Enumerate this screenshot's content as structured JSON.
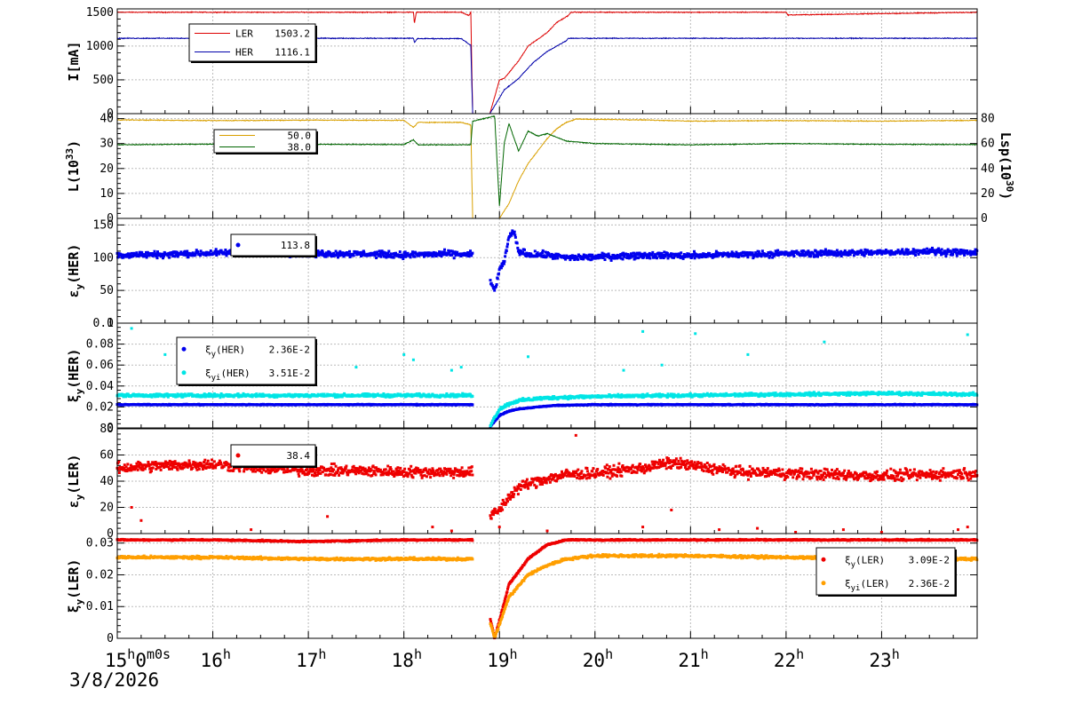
{
  "chart_data": {
    "type": "multi-panel time series",
    "date": "3/8/2026",
    "x_tick_labels": [
      {
        "hour": 15,
        "label": "15",
        "sup": "h",
        "extra": "0",
        "extra_sup": "m",
        "extra2": "0s"
      },
      {
        "hour": 16,
        "label": "16",
        "sup": "h"
      },
      {
        "hour": 17,
        "label": "17",
        "sup": "h"
      },
      {
        "hour": 18,
        "label": "18",
        "sup": "h"
      },
      {
        "hour": 19,
        "label": "19",
        "sup": "h"
      },
      {
        "hour": 20,
        "label": "20",
        "sup": "h"
      },
      {
        "hour": 21,
        "label": "21",
        "sup": "h"
      },
      {
        "hour": 22,
        "label": "22",
        "sup": "h"
      },
      {
        "hour": 23,
        "label": "23",
        "sup": "h"
      }
    ],
    "xlim_hours": [
      15,
      24
    ],
    "grid": true,
    "panels": [
      {
        "id": "current",
        "ylabel": "I[mA]",
        "ylim": [
          0,
          1550
        ],
        "yticks": [
          "0",
          "500",
          "1000",
          "1500"
        ],
        "ytick_values": [
          0,
          500,
          1000,
          1500
        ],
        "legend": [
          {
            "name": "LER",
            "value": "1503.2",
            "color": "#dd0000"
          },
          {
            "name": "HER",
            "value": "1116.1",
            "color": "#0000aa"
          }
        ],
        "series": [
          {
            "name": "LER",
            "color": "#dd0000",
            "style": "line",
            "x": [
              15.0,
              18.1,
              18.11,
              18.13,
              18.6,
              18.68,
              18.7,
              18.72,
              18.9,
              19.0,
              19.05,
              19.2,
              19.3,
              19.5,
              19.6,
              19.72,
              19.75,
              22.0,
              22.02,
              24.0
            ],
            "y": [
              1500,
              1500,
              1330,
              1500,
              1500,
              1450,
              1500,
              0,
              0,
              500,
              520,
              780,
              1000,
              1200,
              1350,
              1450,
              1500,
              1500,
              1460,
              1500
            ]
          },
          {
            "name": "HER",
            "color": "#0000aa",
            "style": "line",
            "x": [
              15.0,
              18.1,
              18.11,
              18.14,
              18.6,
              18.7,
              18.72,
              18.9,
              19.05,
              19.2,
              19.35,
              19.5,
              19.6,
              19.7,
              19.72,
              24.0
            ],
            "y": [
              1115,
              1115,
              1050,
              1110,
              1110,
              1010,
              0,
              0,
              350,
              520,
              750,
              920,
              1000,
              1080,
              1115,
              1115
            ]
          }
        ]
      },
      {
        "id": "luminosity",
        "ylabel": "L(10",
        "ylabel_sup": "33",
        "ylabel_end": ")",
        "ylim": [
          0,
          42
        ],
        "yticks": [
          "0",
          "10",
          "20",
          "30",
          "40"
        ],
        "ytick_values": [
          0,
          10,
          20,
          30,
          40
        ],
        "ylabel_right": "Lsp(10",
        "ylabel_right_sup": "30",
        "ylabel_right_end": ")",
        "ylim_right": [
          0,
          84
        ],
        "yticks_right": [
          "0",
          "20",
          "40",
          "60",
          "80"
        ],
        "ytick_values_right": [
          0,
          20,
          40,
          60,
          80
        ],
        "legend": [
          {
            "name": "",
            "value": "50.0",
            "color": "#d9a000"
          },
          {
            "name": "",
            "value": "38.0",
            "color": "#006600"
          }
        ],
        "series": [
          {
            "name": "L",
            "color": "#d9a000",
            "style": "line",
            "x": [
              15.0,
              16.0,
              17.0,
              18.0,
              18.1,
              18.15,
              18.6,
              18.7,
              18.72,
              19.0,
              19.1,
              19.2,
              19.3,
              19.4,
              19.5,
              19.6,
              19.7,
              19.8,
              20.5,
              21.0,
              22.0,
              23.0,
              24.0
            ],
            "y": [
              39.5,
              39.2,
              39.4,
              39.3,
              36.5,
              38.5,
              38.5,
              37.5,
              0,
              0,
              6,
              15,
              22,
              27,
              32,
              36,
              38.5,
              39.8,
              39.5,
              39.0,
              39.2,
              39.0,
              39.3
            ]
          },
          {
            "name": "Lsp",
            "color": "#006600",
            "style": "line",
            "x": [
              15.0,
              16.0,
              17.0,
              18.0,
              18.1,
              18.15,
              18.7,
              18.72,
              18.95,
              19.0,
              19.05,
              19.1,
              19.2,
              19.3,
              19.4,
              19.5,
              19.7,
              20.0,
              21.0,
              22.0,
              23.0,
              24.0
            ],
            "y": [
              29.5,
              29.8,
              29.7,
              29.6,
              31.5,
              29.5,
              29.5,
              39,
              41,
              5,
              30,
              38,
              27,
              35,
              33,
              34,
              31,
              30,
              29.5,
              30,
              29.7,
              29.6
            ]
          }
        ]
      },
      {
        "id": "emit_her",
        "ylabel": "ε",
        "ylabel_sub": "y",
        "ylabel_end": "(HER)",
        "ylim": [
          0,
          160
        ],
        "yticks": [
          "0",
          "50",
          "100",
          "150"
        ],
        "ytick_values": [
          0,
          50,
          100,
          150
        ],
        "legend": [
          {
            "name": "",
            "value": "113.8",
            "color": "#0000ee"
          }
        ],
        "series": [
          {
            "name": "εy(HER)",
            "color": "#0000ee",
            "style": "scatter",
            "spread": 7,
            "x": [
              15.0,
              15.5,
              16.0,
              16.5,
              17.0,
              17.5,
              18.0,
              18.5,
              18.72,
              18.9,
              18.95,
              19.0,
              19.05,
              19.1,
              19.15,
              19.2,
              19.3,
              19.5,
              19.7,
              20.0,
              20.5,
              21.0,
              21.5,
              22.0,
              22.5,
              23.0,
              23.5,
              24.0
            ],
            "y": [
              104,
              105,
              107,
              109,
              106,
              106,
              104,
              106,
              104,
              65,
              50,
              80,
              95,
              130,
              140,
              110,
              105,
              104,
              100,
              101,
              104,
              103,
              105,
              106,
              107,
              108,
              110,
              107
            ]
          }
        ]
      },
      {
        "id": "xi_her",
        "ylabel": "ξ",
        "ylabel_sub": "y",
        "ylabel_end": "(HER)",
        "ylim": [
          0,
          0.1
        ],
        "yticks": [
          "0",
          "0.02",
          "0.04",
          "0.06",
          "0.08",
          "0.1"
        ],
        "ytick_values": [
          0,
          0.02,
          0.04,
          0.06,
          0.08,
          0.1
        ],
        "legend": [
          {
            "name": "ξ",
            "sub": "y",
            "tail": "(HER)",
            "value": "2.36E-2",
            "color": "#0000ee"
          },
          {
            "name": "ξ",
            "sub": "yi",
            "tail": "(HER)",
            "value": "3.51E-2",
            "color": "#00e5e5"
          }
        ],
        "series": [
          {
            "name": "ξy(HER)",
            "color": "#0000ee",
            "style": "scatter",
            "spread": 0.0006,
            "x": [
              15.0,
              16.0,
              17.0,
              18.0,
              18.72,
              18.9,
              19.0,
              19.1,
              19.2,
              19.4,
              19.6,
              20.0,
              21.0,
              22.0,
              23.0,
              24.0
            ],
            "y": [
              0.0222,
              0.0222,
              0.0222,
              0.0222,
              0.0222,
              0.001,
              0.012,
              0.016,
              0.018,
              0.02,
              0.0215,
              0.0222,
              0.0222,
              0.0222,
              0.0222,
              0.0222
            ]
          },
          {
            "name": "ξyi(HER)",
            "color": "#00e5e5",
            "style": "scatter",
            "spread": 0.0022,
            "x": [
              15.0,
              16.0,
              17.0,
              18.0,
              18.72,
              18.9,
              19.0,
              19.1,
              19.2,
              19.4,
              19.6,
              20.0,
              21.0,
              22.0,
              23.0,
              24.0
            ],
            "y": [
              0.031,
              0.031,
              0.031,
              0.031,
              0.031,
              0.002,
              0.018,
              0.023,
              0.026,
              0.028,
              0.029,
              0.03,
              0.031,
              0.032,
              0.033,
              0.032
            ]
          }
        ],
        "outliers": {
          "color": "#00e5e5",
          "x": [
            15.15,
            15.5,
            16.0,
            17.5,
            18.0,
            18.1,
            18.5,
            18.6,
            19.3,
            20.3,
            20.5,
            20.7,
            21.05,
            21.6,
            22.4,
            23.9
          ],
          "y": [
            0.095,
            0.07,
            0.075,
            0.058,
            0.07,
            0.065,
            0.055,
            0.058,
            0.068,
            0.055,
            0.092,
            0.06,
            0.09,
            0.07,
            0.082,
            0.089
          ]
        }
      },
      {
        "id": "emit_ler",
        "ylabel": "ε",
        "ylabel_sub": "y",
        "ylabel_end": "(LER)",
        "ylim": [
          0,
          80
        ],
        "yticks": [
          "0",
          "20",
          "40",
          "60",
          "80"
        ],
        "ytick_values": [
          0,
          20,
          40,
          60,
          80
        ],
        "legend": [
          {
            "name": "",
            "value": "38.4",
            "color": "#ee0000"
          }
        ],
        "series": [
          {
            "name": "εy(LER)",
            "color": "#ee0000",
            "style": "scatter",
            "spread": 6,
            "x": [
              15.0,
              15.5,
              16.0,
              16.5,
              17.0,
              17.5,
              18.0,
              18.5,
              18.72,
              18.9,
              19.0,
              19.1,
              19.2,
              19.3,
              19.5,
              19.7,
              20.0,
              20.5,
              20.8,
              21.0,
              21.5,
              22.0,
              22.5,
              23.0,
              23.5,
              24.0
            ],
            "y": [
              50,
              52,
              53,
              50,
              48,
              48,
              47,
              47,
              47,
              13,
              18,
              28,
              35,
              38,
              42,
              45,
              46,
              50,
              54,
              52,
              47,
              46,
              45,
              44,
              45,
              46
            ]
          }
        ],
        "outliers": {
          "color": "#ee0000",
          "x": [
            15.15,
            15.25,
            16.4,
            17.2,
            18.3,
            18.5,
            19.0,
            19.5,
            19.8,
            20.5,
            20.8,
            21.3,
            21.7,
            22.1,
            22.6,
            23.0,
            23.8,
            23.9
          ],
          "y": [
            20,
            10,
            3,
            13,
            5,
            2,
            5,
            2,
            75,
            5,
            18,
            3,
            4,
            1,
            3,
            1,
            3,
            5
          ]
        }
      },
      {
        "id": "xi_ler",
        "ylabel": "ξ",
        "ylabel_sub": "y",
        "ylabel_end": "(LER)",
        "ylim": [
          0,
          0.033
        ],
        "yticks": [
          "0",
          "0.01",
          "0.02",
          "0.03"
        ],
        "ytick_values": [
          0,
          0.01,
          0.02,
          0.03
        ],
        "legend": [
          {
            "name": "ξ",
            "sub": "y",
            "tail": "(LER)",
            "value": "3.09E-2",
            "color": "#ee0000"
          },
          {
            "name": "ξ",
            "sub": "yi",
            "tail": "(LER)",
            "value": "2.36E-2",
            "color": "#ff9f00"
          }
        ],
        "series": [
          {
            "name": "ξy(LER)",
            "color": "#ee0000",
            "style": "scatter",
            "spread": 0.0003,
            "x": [
              15.0,
              16.0,
              17.0,
              18.0,
              18.72,
              18.95,
              19.1,
              19.3,
              19.5,
              19.7,
              20.0,
              21.0,
              22.0,
              23.0,
              24.0
            ],
            "y": [
              0.031,
              0.031,
              0.0305,
              0.031,
              0.031,
              0.0,
              0.017,
              0.025,
              0.0295,
              0.031,
              0.031,
              0.031,
              0.031,
              0.031,
              0.031
            ]
          },
          {
            "name": "ξyi(LER)",
            "color": "#ff9f00",
            "style": "scatter",
            "spread": 0.0006,
            "x": [
              15.0,
              16.0,
              17.0,
              18.0,
              18.72,
              18.95,
              19.1,
              19.3,
              19.5,
              19.7,
              20.0,
              21.0,
              22.0,
              23.0,
              24.0
            ],
            "y": [
              0.0255,
              0.0255,
              0.025,
              0.025,
              0.025,
              0.0,
              0.013,
              0.02,
              0.023,
              0.025,
              0.026,
              0.026,
              0.0255,
              0.025,
              0.025
            ]
          }
        ]
      }
    ]
  }
}
